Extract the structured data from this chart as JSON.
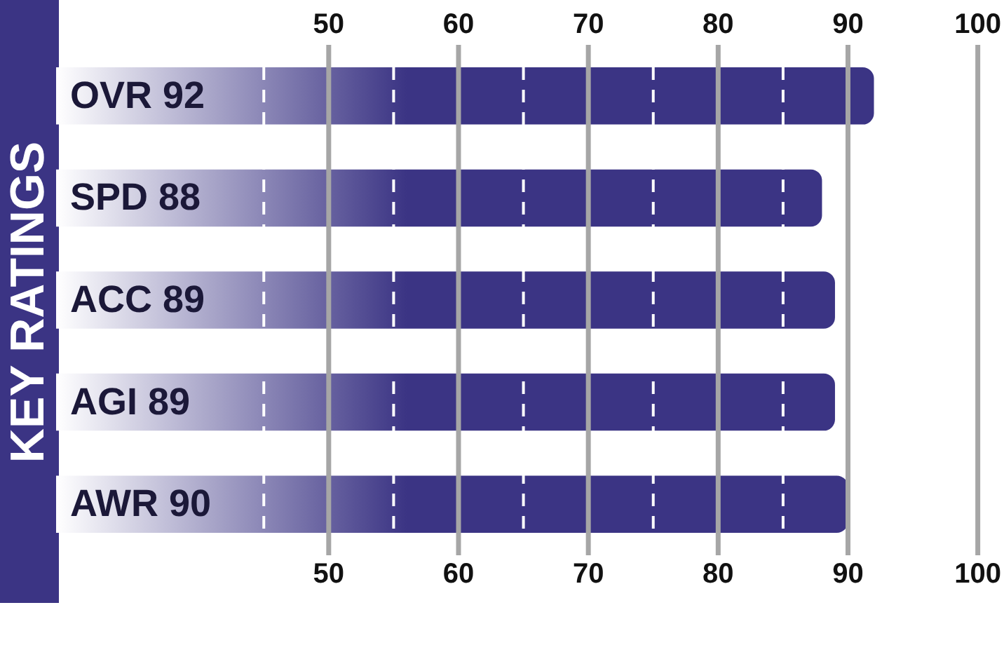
{
  "chart_data": {
    "type": "bar",
    "orientation": "horizontal",
    "ylabel": "KEY RATINGS",
    "categories": [
      "OVR 92",
      "SPD 88",
      "ACC 89",
      "AGI 89",
      "AWR 90"
    ],
    "values": [
      92,
      88,
      89,
      89,
      90
    ],
    "color": "#3b3484",
    "xlim": [
      29,
      100
    ],
    "xticks": [
      {
        "value": 45,
        "label": null
      },
      50,
      {
        "value": 55,
        "label": null
      },
      60,
      {
        "value": 65,
        "label": null
      },
      70,
      {
        "value": 75,
        "label": null
      },
      80,
      {
        "value": 85,
        "label": null
      },
      90,
      100
    ],
    "x2lim": [
      29,
      100
    ],
    "x2ticks": [
      50,
      60,
      70,
      80,
      90,
      100
    ],
    "grid": "x"
  }
}
